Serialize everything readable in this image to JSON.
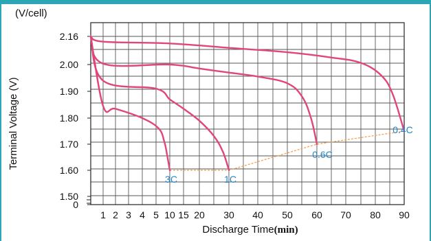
{
  "chart_data": {
    "type": "line",
    "title": "",
    "ylabel": "Terminal Voltage (V)",
    "yunit": "(V/cell)",
    "xlabel": "Discharge Time",
    "xunit": "(min)",
    "grid": true,
    "x_ticks": [
      "1",
      "2",
      "3",
      "4",
      "5",
      "10",
      "15",
      "20",
      "30",
      "40",
      "50",
      "60",
      "70",
      "80",
      "90"
    ],
    "y_ticks": [
      "0",
      "1.50",
      "1.60",
      "1.70",
      "1.80",
      "1.90",
      "2.00",
      "2.16"
    ],
    "series": [
      {
        "name": "3C",
        "color": "#e0457b",
        "points": [
          [
            0,
            2.16
          ],
          [
            1,
            1.845
          ],
          [
            2,
            1.835
          ],
          [
            4,
            1.8
          ],
          [
            6,
            1.76
          ],
          [
            8,
            1.71
          ],
          [
            9,
            1.66
          ],
          [
            10,
            1.6
          ]
        ]
      },
      {
        "name": "1C",
        "color": "#e0457b",
        "points": [
          [
            0,
            2.16
          ],
          [
            1,
            1.94
          ],
          [
            5,
            1.91
          ],
          [
            10,
            1.87
          ],
          [
            15,
            1.835
          ],
          [
            20,
            1.79
          ],
          [
            25,
            1.73
          ],
          [
            28,
            1.67
          ],
          [
            30,
            1.6
          ]
        ]
      },
      {
        "name": "0.6C",
        "color": "#e0457b",
        "points": [
          [
            0,
            2.16
          ],
          [
            1,
            2.005
          ],
          [
            10,
            2.0
          ],
          [
            20,
            1.985
          ],
          [
            30,
            1.97
          ],
          [
            40,
            1.955
          ],
          [
            50,
            1.93
          ],
          [
            55,
            1.88
          ],
          [
            58,
            1.8
          ],
          [
            60,
            1.7
          ]
        ]
      },
      {
        "name": "0.4C",
        "color": "#e0457b",
        "points": [
          [
            0,
            2.16
          ],
          [
            1,
            2.13
          ],
          [
            10,
            2.12
          ],
          [
            30,
            2.095
          ],
          [
            50,
            2.07
          ],
          [
            65,
            2.04
          ],
          [
            75,
            2.01
          ],
          [
            82,
            1.96
          ],
          [
            86,
            1.89
          ],
          [
            90,
            1.75
          ]
        ]
      }
    ],
    "cutoff_line": {
      "color": "#f2a24a",
      "points": [
        [
          10,
          1.6
        ],
        [
          30,
          1.6
        ],
        [
          60,
          1.7
        ],
        [
          90,
          1.75
        ]
      ]
    },
    "annotations": [
      {
        "text": "3C",
        "x": 10,
        "y": 1.6
      },
      {
        "text": "1C",
        "x": 30,
        "y": 1.6
      },
      {
        "text": "0.6C",
        "x": 60,
        "y": 1.7
      },
      {
        "text": "0.4C",
        "x": 90,
        "y": 1.75
      }
    ]
  }
}
